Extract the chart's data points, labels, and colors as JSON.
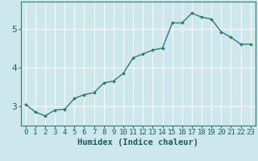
{
  "xlabel": "Humidex (Indice chaleur)",
  "x_values": [
    0,
    1,
    2,
    3,
    4,
    5,
    6,
    7,
    8,
    9,
    10,
    11,
    12,
    13,
    14,
    15,
    16,
    17,
    18,
    19,
    20,
    21,
    22,
    23
  ],
  "y_values": [
    3.05,
    2.85,
    2.75,
    2.9,
    2.92,
    3.2,
    3.3,
    3.35,
    3.6,
    3.65,
    3.85,
    4.25,
    4.35,
    4.45,
    4.5,
    5.15,
    5.15,
    5.4,
    5.3,
    5.25,
    4.92,
    4.78,
    4.6,
    4.6
  ],
  "line_color": "#2e7d6e",
  "marker": "D",
  "marker_size": 2.0,
  "line_width": 1.0,
  "bg_color": "#cce8ec",
  "grid_color": "#ffffff",
  "tick_label_color": "#1a5c5c",
  "axis_color": "#2e7d6e",
  "ylim": [
    2.5,
    5.7
  ],
  "yticks": [
    3,
    4,
    5
  ],
  "xlim": [
    -0.5,
    23.5
  ],
  "xlabel_fontsize": 7.5,
  "tick_fontsize": 6.5,
  "ytick_fontsize": 8.0
}
